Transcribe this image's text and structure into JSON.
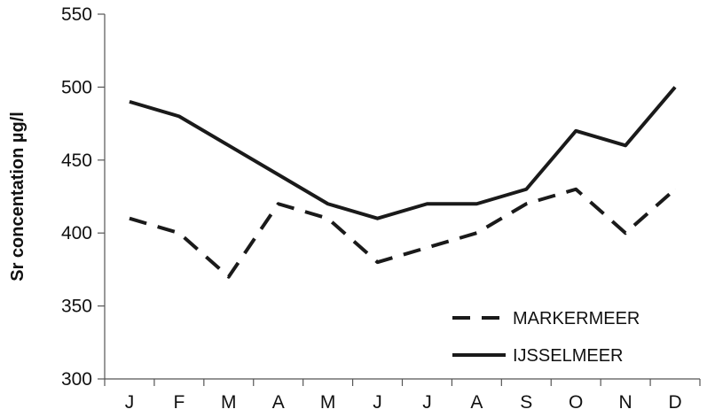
{
  "chart_data": {
    "type": "line",
    "title": "",
    "xlabel": "",
    "ylabel": "Sr concentation µg/l",
    "categories": [
      "J",
      "F",
      "M",
      "A",
      "M",
      "J",
      "J",
      "A",
      "S",
      "O",
      "N",
      "D"
    ],
    "yticks": [
      "300",
      "350",
      "400",
      "450",
      "500",
      "550"
    ],
    "ylim": [
      300,
      550
    ],
    "grid": false,
    "legend_position": "bottom-right",
    "series": [
      {
        "name": "MARKERMEER",
        "style": "dashed",
        "color": "#1a1a1a",
        "values": [
          410,
          400,
          370,
          420,
          410,
          380,
          390,
          400,
          420,
          430,
          400,
          430
        ]
      },
      {
        "name": "IJSSELMEER",
        "style": "solid",
        "color": "#1a1a1a",
        "values": [
          490,
          480,
          460,
          440,
          420,
          410,
          420,
          420,
          430,
          470,
          460,
          500
        ]
      }
    ]
  }
}
